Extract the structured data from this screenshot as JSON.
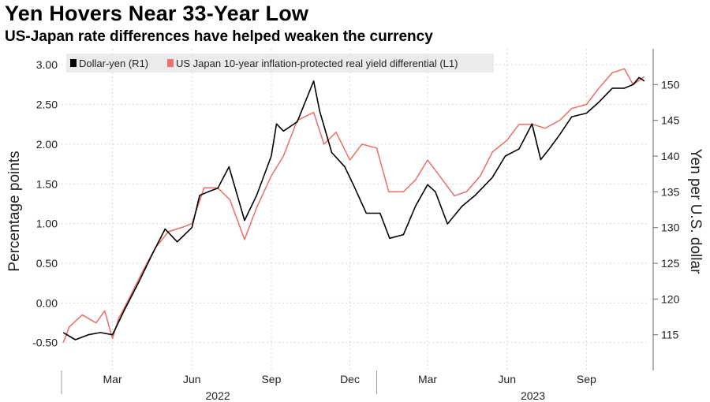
{
  "title": "Yen Hovers Near 33-Year Low",
  "subtitle": "US-Japan rate differences have helped weaken the currency",
  "chart_data": {
    "type": "line",
    "grid": true,
    "legend_position": "top-left",
    "ylabel_left": "Percentage points",
    "ylabel_right": "Yen per U.S. dollar",
    "ylim_left": [
      -0.85,
      3.2
    ],
    "ylim_right": [
      110,
      155
    ],
    "yticks_left": [
      "3.00",
      "2.50",
      "2.00",
      "1.50",
      "1.00",
      "0.50",
      "0.00",
      "-0.50"
    ],
    "ytick_values_left": [
      3.0,
      2.5,
      2.0,
      1.5,
      1.0,
      0.5,
      0.0,
      -0.5
    ],
    "yticks_right": [
      "150",
      "145",
      "140",
      "135",
      "130",
      "125",
      "120",
      "115"
    ],
    "ytick_values_right": [
      150,
      145,
      140,
      135,
      130,
      125,
      120,
      115
    ],
    "x_tick_labels": [
      "Mar",
      "Jun",
      "Sep",
      "Dec",
      "Mar",
      "Jun",
      "Sep"
    ],
    "x_tick_dates": [
      "2022-03-01",
      "2022-06-01",
      "2022-09-01",
      "2022-12-01",
      "2023-03-01",
      "2023-06-01",
      "2023-09-01"
    ],
    "x_year_labels": [
      "2022",
      "2023"
    ],
    "x_year_dates": [
      "2022-07-01",
      "2023-07-01"
    ],
    "xlim": [
      "2022-01-01",
      "2023-11-10"
    ],
    "series": [
      {
        "name": "Dollar-yen (R1)",
        "axis": "right",
        "color": "#000000",
        "points": [
          [
            "2022-01-03",
            115.3
          ],
          [
            "2022-01-17",
            114.3
          ],
          [
            "2022-02-01",
            115.0
          ],
          [
            "2022-02-15",
            115.3
          ],
          [
            "2022-03-01",
            115.0
          ],
          [
            "2022-03-15",
            118.5
          ],
          [
            "2022-04-01",
            122.5
          ],
          [
            "2022-04-15",
            126.0
          ],
          [
            "2022-05-01",
            129.8
          ],
          [
            "2022-05-15",
            128.0
          ],
          [
            "2022-06-01",
            130.0
          ],
          [
            "2022-06-10",
            134.5
          ],
          [
            "2022-06-20",
            135.0
          ],
          [
            "2022-07-01",
            135.5
          ],
          [
            "2022-07-14",
            138.5
          ],
          [
            "2022-08-01",
            131.0
          ],
          [
            "2022-08-15",
            134.5
          ],
          [
            "2022-09-01",
            140.0
          ],
          [
            "2022-09-07",
            144.5
          ],
          [
            "2022-09-15",
            143.5
          ],
          [
            "2022-10-01",
            144.8
          ],
          [
            "2022-10-20",
            150.5
          ],
          [
            "2022-10-27",
            146.3
          ],
          [
            "2022-11-10",
            140.5
          ],
          [
            "2022-11-25",
            138.5
          ],
          [
            "2022-12-05",
            136.0
          ],
          [
            "2022-12-20",
            132.0
          ],
          [
            "2023-01-05",
            132.0
          ],
          [
            "2023-01-16",
            128.5
          ],
          [
            "2023-02-01",
            129.0
          ],
          [
            "2023-02-15",
            133.0
          ],
          [
            "2023-03-01",
            136.0
          ],
          [
            "2023-03-10",
            135.0
          ],
          [
            "2023-03-24",
            130.5
          ],
          [
            "2023-04-10",
            133.0
          ],
          [
            "2023-04-25",
            134.5
          ],
          [
            "2023-05-15",
            137.0
          ],
          [
            "2023-05-30",
            140.0
          ],
          [
            "2023-06-15",
            141.0
          ],
          [
            "2023-06-30",
            144.5
          ],
          [
            "2023-07-10",
            139.5
          ],
          [
            "2023-07-20",
            141.0
          ],
          [
            "2023-08-01",
            143.0
          ],
          [
            "2023-08-15",
            145.5
          ],
          [
            "2023-09-01",
            146.0
          ],
          [
            "2023-09-15",
            147.5
          ],
          [
            "2023-10-01",
            149.5
          ],
          [
            "2023-10-15",
            149.5
          ],
          [
            "2023-10-25",
            150.0
          ],
          [
            "2023-11-01",
            151.0
          ],
          [
            "2023-11-07",
            150.5
          ]
        ]
      },
      {
        "name": "US Japan 10-year inflation-protected real yield differential (L1)",
        "axis": "left",
        "color": "#E8766E",
        "points": [
          [
            "2022-01-03",
            -0.5
          ],
          [
            "2022-01-10",
            -0.3
          ],
          [
            "2022-01-25",
            -0.15
          ],
          [
            "2022-02-10",
            -0.25
          ],
          [
            "2022-02-20",
            -0.1
          ],
          [
            "2022-03-01",
            -0.45
          ],
          [
            "2022-03-08",
            -0.2
          ],
          [
            "2022-03-20",
            0.05
          ],
          [
            "2022-04-05",
            0.4
          ],
          [
            "2022-04-20",
            0.7
          ],
          [
            "2022-05-05",
            0.9
          ],
          [
            "2022-05-20",
            0.95
          ],
          [
            "2022-06-01",
            1.0
          ],
          [
            "2022-06-15",
            1.45
          ],
          [
            "2022-07-01",
            1.45
          ],
          [
            "2022-07-15",
            1.3
          ],
          [
            "2022-08-01",
            0.8
          ],
          [
            "2022-08-15",
            1.2
          ],
          [
            "2022-09-01",
            1.6
          ],
          [
            "2022-09-15",
            1.85
          ],
          [
            "2022-10-01",
            2.3
          ],
          [
            "2022-10-20",
            2.4
          ],
          [
            "2022-11-01",
            2.0
          ],
          [
            "2022-11-15",
            2.15
          ],
          [
            "2022-12-01",
            1.8
          ],
          [
            "2022-12-15",
            2.0
          ],
          [
            "2023-01-01",
            1.95
          ],
          [
            "2023-01-15",
            1.4
          ],
          [
            "2023-02-01",
            1.4
          ],
          [
            "2023-02-15",
            1.55
          ],
          [
            "2023-03-01",
            1.8
          ],
          [
            "2023-03-15",
            1.6
          ],
          [
            "2023-04-01",
            1.35
          ],
          [
            "2023-04-15",
            1.4
          ],
          [
            "2023-05-01",
            1.6
          ],
          [
            "2023-05-15",
            1.9
          ],
          [
            "2023-06-01",
            2.05
          ],
          [
            "2023-06-15",
            2.25
          ],
          [
            "2023-07-01",
            2.25
          ],
          [
            "2023-07-15",
            2.2
          ],
          [
            "2023-08-01",
            2.3
          ],
          [
            "2023-08-15",
            2.45
          ],
          [
            "2023-09-01",
            2.5
          ],
          [
            "2023-09-15",
            2.7
          ],
          [
            "2023-10-01",
            2.9
          ],
          [
            "2023-10-15",
            2.95
          ],
          [
            "2023-10-25",
            2.75
          ],
          [
            "2023-11-07",
            2.85
          ]
        ]
      }
    ]
  }
}
